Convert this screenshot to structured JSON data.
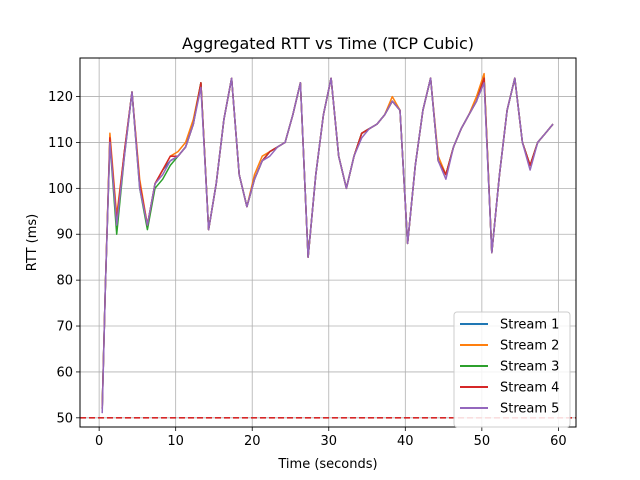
{
  "chart_data": {
    "type": "line",
    "title": "Aggregated RTT vs Time (TCP Cubic)",
    "xlabel": "Time (seconds)",
    "ylabel": "RTT (ms)",
    "xlim": [
      -2.5,
      62.3
    ],
    "ylim": [
      48,
      128.4
    ],
    "xticks": [
      0,
      10,
      20,
      30,
      40,
      50,
      60
    ],
    "yticks": [
      50,
      60,
      70,
      80,
      90,
      100,
      110,
      120
    ],
    "grid": true,
    "legend_position": "bottom-right",
    "reference_line": {
      "y": 50,
      "color": "#d62728",
      "style": "dashed"
    },
    "series": [
      {
        "name": "Stream 1",
        "color": "#1f77b4",
        "x": [
          0.4,
          0.8,
          1.4,
          2.3,
          3.3,
          4.3,
          5.3,
          6.3,
          7.3,
          8.3,
          9.3,
          10.3,
          11.3,
          12.3,
          13.3,
          14.3,
          15.3,
          16.3,
          17.3,
          18.3,
          19.3,
          20.3,
          21.3,
          22.3,
          23.3,
          24.3,
          25.3,
          26.3,
          27.3,
          28.3,
          29.3,
          30.3,
          31.3,
          32.3,
          33.3,
          34.3,
          35.3,
          36.3,
          37.3,
          38.3,
          39.3,
          40.3,
          41.3,
          42.3,
          43.3,
          44.3,
          45.3,
          46.3,
          47.3,
          48.3,
          49.3,
          50.3,
          51.3,
          52.3,
          53.3,
          54.3,
          55.3,
          56.3,
          57.3,
          58.3,
          59.3
        ],
        "values": [
          52,
          78,
          111,
          93,
          108,
          121,
          101,
          92,
          101,
          104,
          106,
          107,
          109,
          114,
          123,
          91,
          101,
          115,
          124,
          103,
          96,
          102,
          106,
          108,
          109,
          110,
          116,
          123,
          85,
          103,
          116,
          124,
          107,
          100,
          107,
          112,
          113,
          114,
          116,
          119,
          117,
          88,
          105,
          117,
          124,
          106,
          103,
          109,
          113,
          116,
          119,
          124,
          86,
          103,
          117,
          124,
          110,
          105,
          110,
          112,
          114
        ]
      },
      {
        "name": "Stream 2",
        "color": "#ff7f0e",
        "x": [
          0.4,
          0.8,
          1.4,
          2.3,
          3.3,
          4.3,
          5.3,
          6.3,
          7.3,
          8.3,
          9.3,
          10.3,
          11.3,
          12.3,
          13.3,
          14.3,
          15.3,
          16.3,
          17.3,
          18.3,
          19.3,
          20.3,
          21.3,
          22.3,
          23.3,
          24.3,
          25.3,
          26.3,
          27.3,
          28.3,
          29.3,
          30.3,
          31.3,
          32.3,
          33.3,
          34.3,
          35.3,
          36.3,
          37.3,
          38.3,
          39.3,
          40.3,
          41.3,
          42.3,
          43.3,
          44.3,
          45.3,
          46.3,
          47.3,
          48.3,
          49.3,
          50.3,
          51.3,
          52.3,
          53.3,
          54.3,
          55.3,
          56.3,
          57.3,
          58.3,
          59.3
        ],
        "values": [
          52,
          78,
          112,
          94,
          108,
          121,
          102,
          92,
          101,
          104,
          107,
          108,
          110,
          115,
          123,
          91,
          101,
          115,
          124,
          103,
          96,
          103,
          107,
          108,
          109,
          110,
          116,
          123,
          85,
          103,
          116,
          124,
          107,
          100,
          107,
          112,
          113,
          114,
          116,
          120,
          117,
          88,
          105,
          117,
          124,
          107,
          103,
          109,
          113,
          116,
          120,
          125,
          86,
          103,
          117,
          124,
          110,
          105,
          110,
          112,
          114
        ]
      },
      {
        "name": "Stream 3",
        "color": "#2ca02c",
        "x": [
          0.4,
          0.8,
          1.4,
          2.3,
          3.3,
          4.3,
          5.3,
          6.3,
          7.3,
          8.3,
          9.3,
          10.3,
          11.3,
          12.3,
          13.3,
          14.3,
          15.3,
          16.3,
          17.3,
          18.3,
          19.3,
          20.3,
          21.3,
          22.3,
          23.3,
          24.3,
          25.3,
          26.3,
          27.3,
          28.3,
          29.3,
          30.3,
          31.3,
          32.3,
          33.3,
          34.3,
          35.3,
          36.3,
          37.3,
          38.3,
          39.3,
          40.3,
          41.3,
          42.3,
          43.3,
          44.3,
          45.3,
          46.3,
          47.3,
          48.3,
          49.3,
          50.3,
          51.3,
          52.3,
          53.3,
          54.3,
          55.3,
          56.3,
          57.3,
          58.3,
          59.3
        ],
        "values": [
          52,
          78,
          110,
          90,
          107,
          121,
          100,
          91,
          100,
          102,
          105,
          107,
          109,
          114,
          123,
          91,
          101,
          115,
          124,
          103,
          96,
          102,
          106,
          108,
          109,
          110,
          116,
          123,
          85,
          103,
          116,
          124,
          107,
          100,
          107,
          112,
          113,
          114,
          116,
          119,
          117,
          88,
          105,
          117,
          124,
          106,
          103,
          109,
          113,
          116,
          119,
          124,
          86,
          103,
          117,
          124,
          110,
          105,
          110,
          112,
          114
        ]
      },
      {
        "name": "Stream 4",
        "color": "#d62728",
        "x": [
          0.4,
          0.8,
          1.4,
          2.3,
          3.3,
          4.3,
          5.3,
          6.3,
          7.3,
          8.3,
          9.3,
          10.3,
          11.3,
          12.3,
          13.3,
          14.3,
          15.3,
          16.3,
          17.3,
          18.3,
          19.3,
          20.3,
          21.3,
          22.3,
          23.3,
          24.3,
          25.3,
          26.3,
          27.3,
          28.3,
          29.3,
          30.3,
          31.3,
          32.3,
          33.3,
          34.3,
          35.3,
          36.3,
          37.3,
          38.3,
          39.3,
          40.3,
          41.3,
          42.3,
          43.3,
          44.3,
          45.3,
          46.3,
          47.3,
          48.3,
          49.3,
          50.3,
          51.3,
          52.3,
          53.3,
          54.3,
          55.3,
          56.3,
          57.3,
          58.3,
          59.3
        ],
        "values": [
          52,
          78,
          111,
          93,
          108,
          121,
          101,
          92,
          101,
          104,
          107,
          107,
          109,
          114,
          123,
          91,
          101,
          115,
          124,
          103,
          96,
          102,
          106,
          108,
          109,
          110,
          116,
          123,
          85,
          103,
          116,
          124,
          107,
          100,
          107,
          112,
          113,
          114,
          116,
          119,
          117,
          88,
          105,
          117,
          124,
          106,
          103,
          109,
          113,
          116,
          119,
          124,
          86,
          103,
          117,
          124,
          110,
          105,
          110,
          112,
          114
        ]
      },
      {
        "name": "Stream 5",
        "color": "#9467bd",
        "x": [
          0.4,
          0.8,
          1.4,
          2.3,
          3.3,
          4.3,
          5.3,
          6.3,
          7.3,
          8.3,
          9.3,
          10.3,
          11.3,
          12.3,
          13.3,
          14.3,
          15.3,
          16.3,
          17.3,
          18.3,
          19.3,
          20.3,
          21.3,
          22.3,
          23.3,
          24.3,
          25.3,
          26.3,
          27.3,
          28.3,
          29.3,
          30.3,
          31.3,
          32.3,
          33.3,
          34.3,
          35.3,
          36.3,
          37.3,
          38.3,
          39.3,
          40.3,
          41.3,
          42.3,
          43.3,
          44.3,
          45.3,
          46.3,
          47.3,
          48.3,
          49.3,
          50.3,
          51.3,
          52.3,
          53.3,
          54.3,
          55.3,
          56.3,
          57.3,
          58.3,
          59.3
        ],
        "values": [
          51,
          78,
          110,
          92,
          107,
          121,
          100,
          92,
          101,
          103,
          106,
          107,
          109,
          114,
          122,
          91,
          101,
          115,
          124,
          103,
          96,
          102,
          106,
          107,
          109,
          110,
          116,
          123,
          85,
          103,
          116,
          124,
          107,
          100,
          107,
          111,
          113,
          114,
          116,
          119,
          117,
          88,
          105,
          117,
          124,
          106,
          102,
          109,
          113,
          116,
          119,
          123,
          86,
          103,
          117,
          124,
          110,
          104,
          110,
          112,
          114
        ]
      }
    ]
  }
}
